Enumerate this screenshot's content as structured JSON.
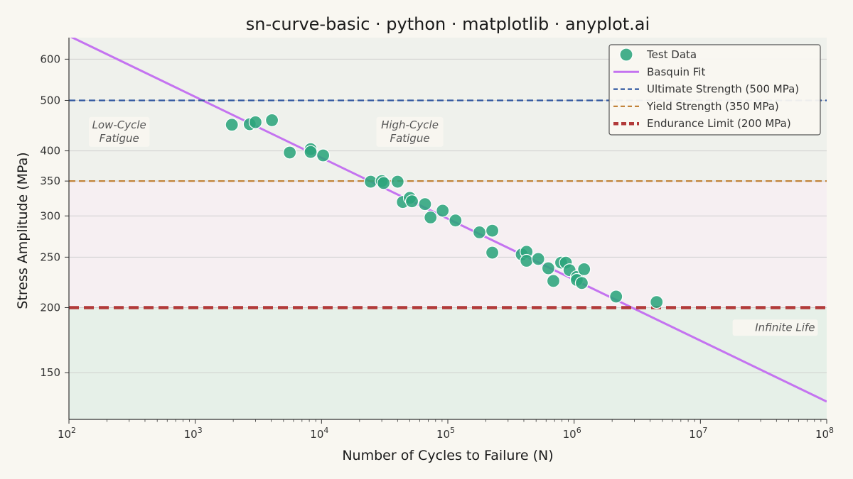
{
  "chart_data": {
    "type": "scatter",
    "title": "sn-curve-basic · python · matplotlib · anyplot.ai",
    "xlabel": "Number of Cycles to Failure (N)",
    "ylabel": "Stress Amplitude (MPa)",
    "x_scale": "log",
    "y_scale": "log",
    "xlim": [
      100,
      100000000
    ],
    "ylim": [
      122,
      660
    ],
    "x_ticks": [
      {
        "value": 100,
        "base": "10",
        "exp": "2"
      },
      {
        "value": 1000,
        "base": "10",
        "exp": "3"
      },
      {
        "value": 10000,
        "base": "10",
        "exp": "4"
      },
      {
        "value": 100000,
        "base": "10",
        "exp": "5"
      },
      {
        "value": 1000000,
        "base": "10",
        "exp": "6"
      },
      {
        "value": 10000000,
        "base": "10",
        "exp": "7"
      },
      {
        "value": 100000000,
        "base": "10",
        "exp": "8"
      }
    ],
    "y_ticks": [
      {
        "value": 150,
        "label": "150"
      },
      {
        "value": 200,
        "label": "200"
      },
      {
        "value": 250,
        "label": "250"
      },
      {
        "value": 300,
        "label": "300"
      },
      {
        "value": 350,
        "label": "350"
      },
      {
        "value": 400,
        "label": "400"
      },
      {
        "value": 500,
        "label": "500"
      },
      {
        "value": 600,
        "label": "600"
      }
    ],
    "grid": true,
    "legend_position": "top-right",
    "regions": [
      {
        "y_from": 122,
        "y_to": 200,
        "color": "#E6F0E8"
      },
      {
        "y_from": 200,
        "y_to": 350,
        "color": "#F6EFF2"
      },
      {
        "y_from": 350,
        "y_to": 660,
        "color": "#EFF1EC"
      }
    ],
    "series": [
      {
        "name": "Test Data",
        "kind": "scatter",
        "color": "#2CA57C",
        "points": [
          [
            1950,
            449
          ],
          [
            2700,
            450
          ],
          [
            3000,
            454
          ],
          [
            4050,
            458
          ],
          [
            5600,
            397
          ],
          [
            8200,
            403
          ],
          [
            8200,
            398
          ],
          [
            10300,
            392
          ],
          [
            24500,
            349
          ],
          [
            30000,
            350
          ],
          [
            31000,
            347
          ],
          [
            40000,
            349
          ],
          [
            44000,
            319
          ],
          [
            50000,
            325
          ],
          [
            52000,
            320
          ],
          [
            66000,
            316
          ],
          [
            73000,
            298
          ],
          [
            91000,
            307
          ],
          [
            115000,
            294
          ],
          [
            178000,
            279
          ],
          [
            225000,
            281
          ],
          [
            225000,
            255
          ],
          [
            385000,
            253
          ],
          [
            420000,
            256
          ],
          [
            420000,
            246
          ],
          [
            520000,
            248
          ],
          [
            625000,
            238
          ],
          [
            685000,
            225
          ],
          [
            790000,
            244
          ],
          [
            860000,
            244
          ],
          [
            920000,
            236
          ],
          [
            1050000,
            229
          ],
          [
            1050000,
            226
          ],
          [
            1150000,
            223
          ],
          [
            1200000,
            237
          ],
          [
            2150000,
            210
          ],
          [
            4500000,
            205
          ]
        ]
      },
      {
        "name": "Basquin Fit",
        "kind": "line",
        "color": "#C473F0",
        "points": [
          [
            100,
            665
          ],
          [
            100000000,
            132
          ]
        ]
      },
      {
        "name": "Ultimate Strength (500 MPa)",
        "kind": "hline",
        "value": 500,
        "color": "#2F56A0"
      },
      {
        "name": "Yield Strength (350 MPa)",
        "kind": "hline",
        "value": 350,
        "color": "#C2833A"
      },
      {
        "name": "Endurance Limit (200 MPa)",
        "kind": "hline",
        "value": 200,
        "color": "#B23A3A"
      }
    ],
    "annotations": [
      {
        "lines": [
          "Low-Cycle",
          "Fatigue"
        ],
        "x": 250,
        "y": 435,
        "anchor": "middle"
      },
      {
        "lines": [
          "High-Cycle",
          "Fatigue"
        ],
        "x": 50000,
        "y": 435,
        "anchor": "middle"
      },
      {
        "lines": [
          "Infinite Life"
        ],
        "x": 85000000,
        "y": 183,
        "anchor": "end"
      }
    ]
  }
}
